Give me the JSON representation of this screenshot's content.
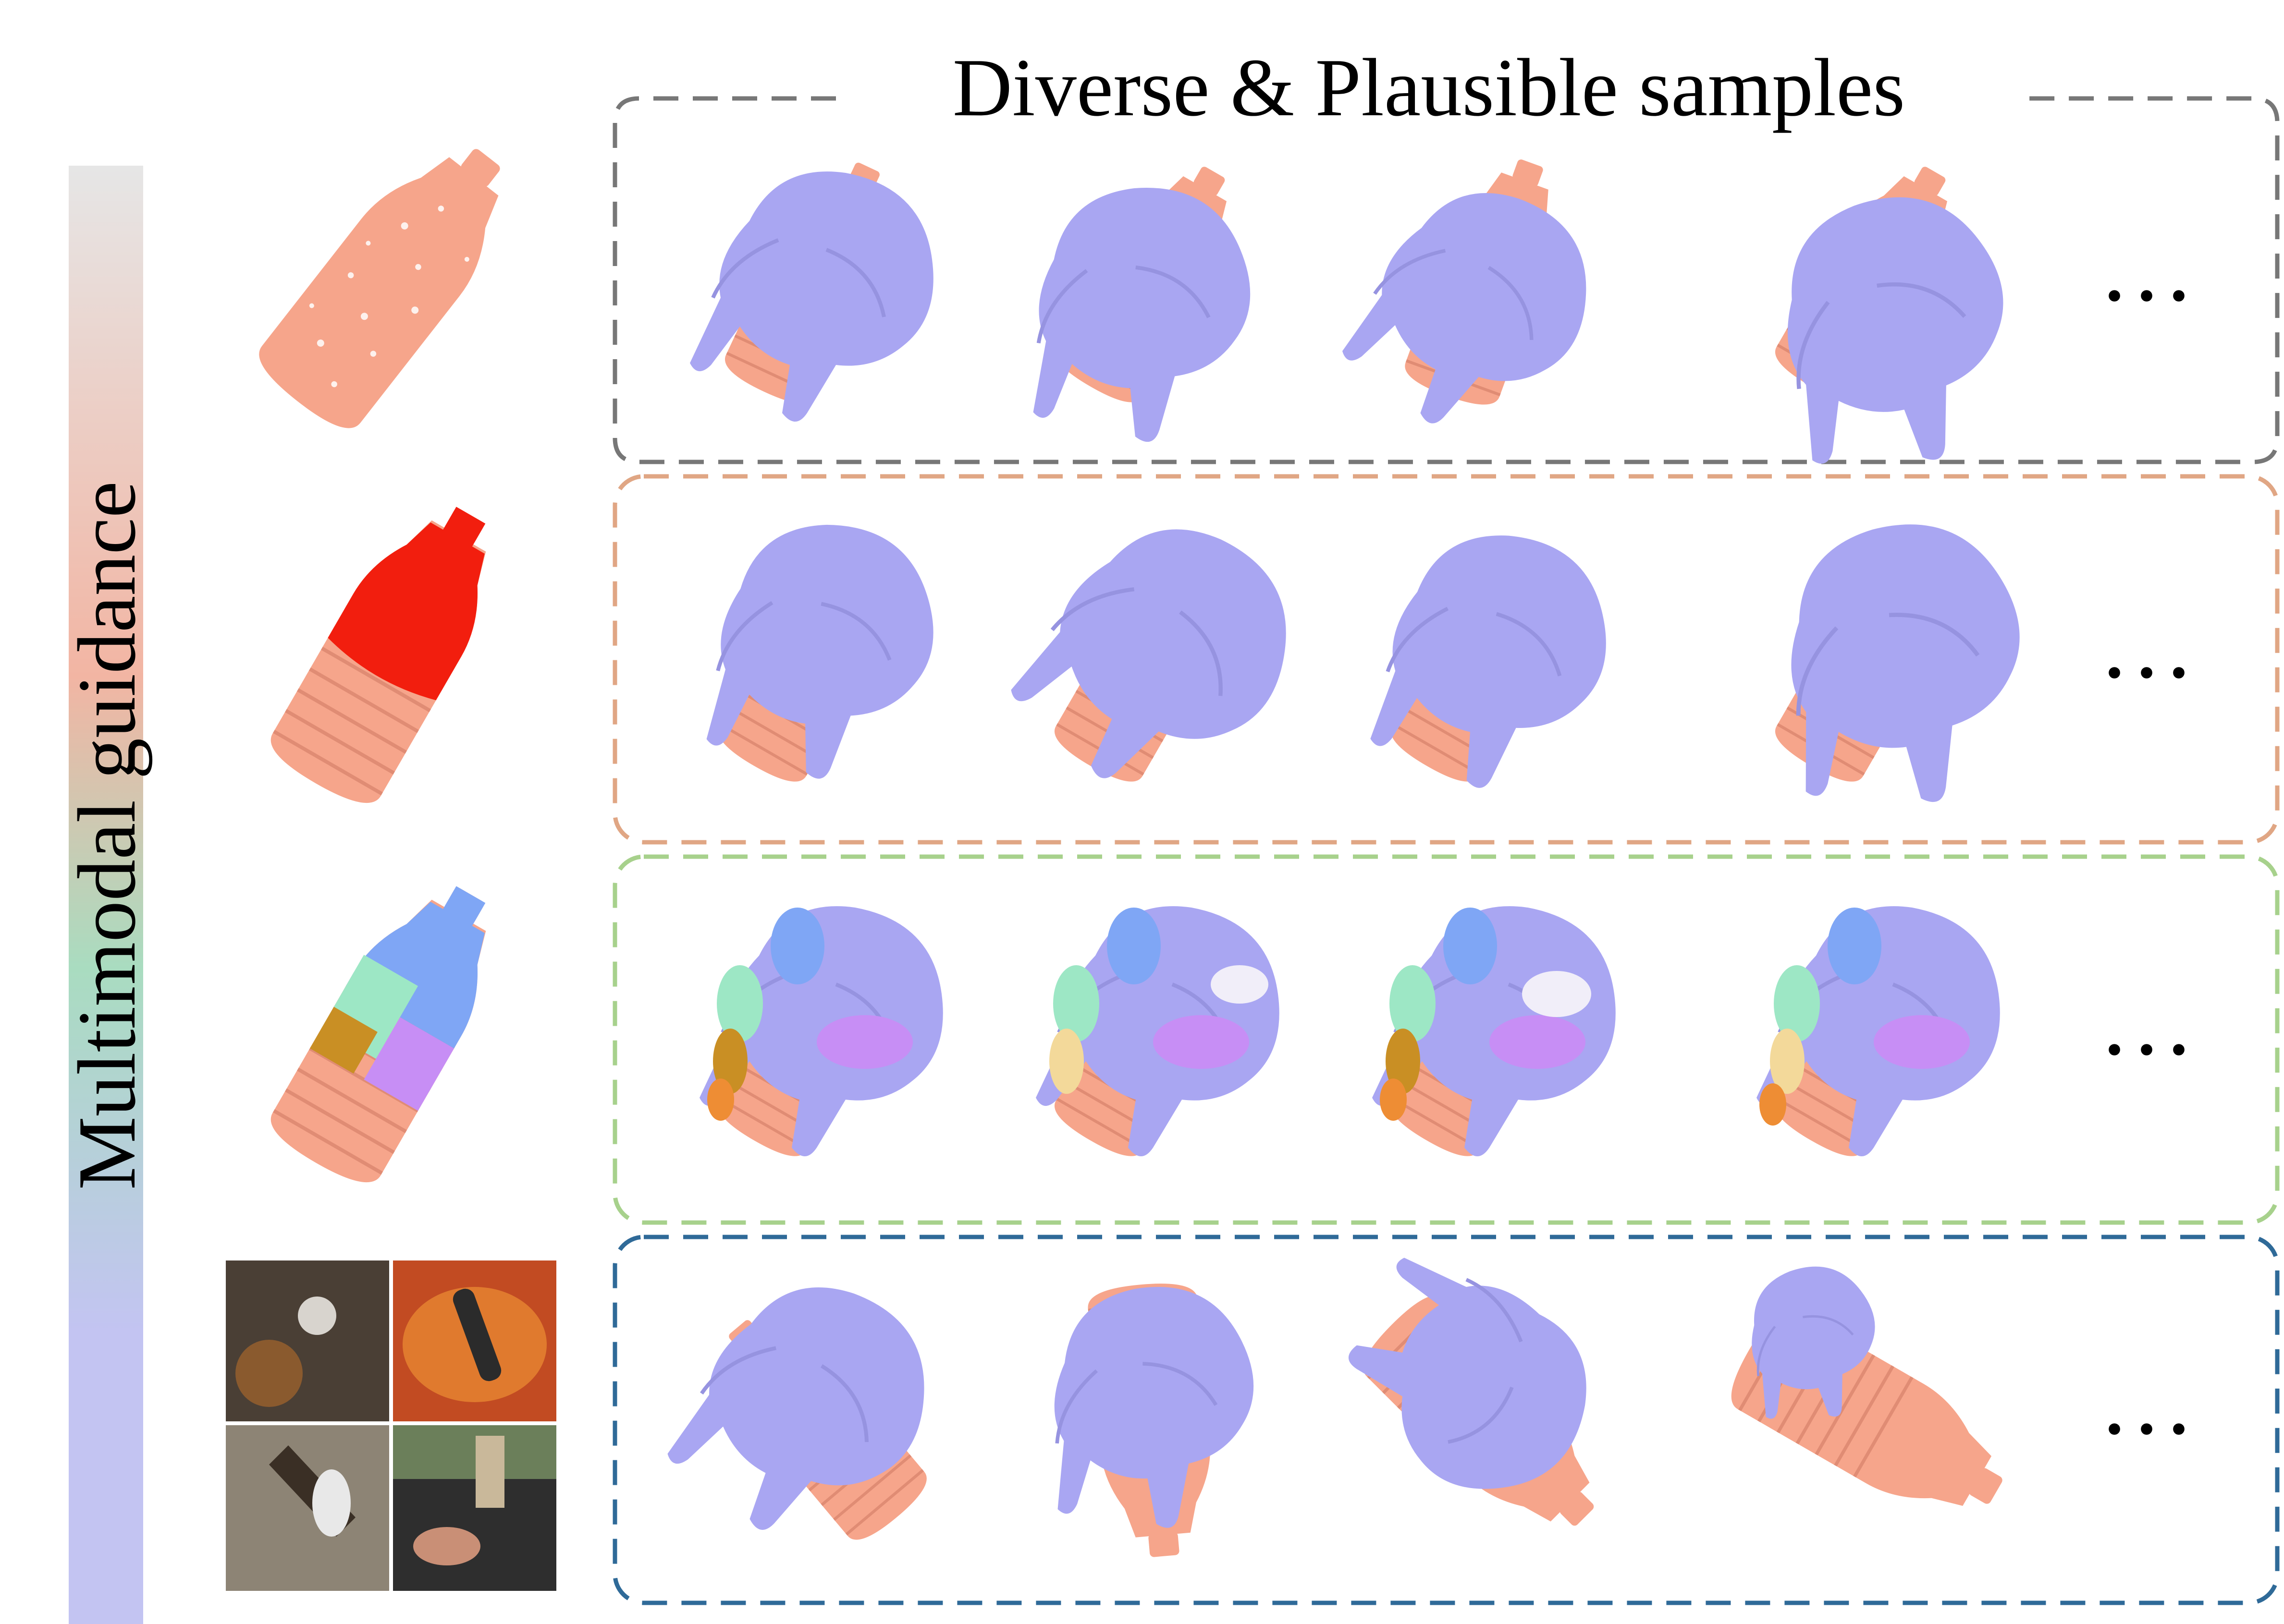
{
  "title": "Diverse & Plausible samples",
  "side_label": "Multimodal guidance",
  "ellipsis": "…",
  "colors": {
    "bottle": "#f6a58b",
    "bottle_contact": "#f21e0e",
    "hand": "#a9a6f2",
    "gradient_top": "#e6e6e6",
    "gradient_mid_pink": "#f2b5a3",
    "gradient_mid_green": "#a9dcc0",
    "gradient_bottom": "#c3c4f2"
  },
  "rows": [
    {
      "name": "point-cloud",
      "border_color": "#777777",
      "sample_count": 4
    },
    {
      "name": "contact-map",
      "border_color": "#e0a684",
      "sample_count": 4
    },
    {
      "name": "part-map",
      "border_color": "#a7d18c",
      "sample_count": 4
    },
    {
      "name": "image",
      "border_color": "#2f6a98",
      "sample_count": 4
    }
  ],
  "part_colors": [
    "#7fa6f5",
    "#9de7c5",
    "#c98f24",
    "#c78ef5",
    "#f3d99a",
    "#ee8d34"
  ]
}
